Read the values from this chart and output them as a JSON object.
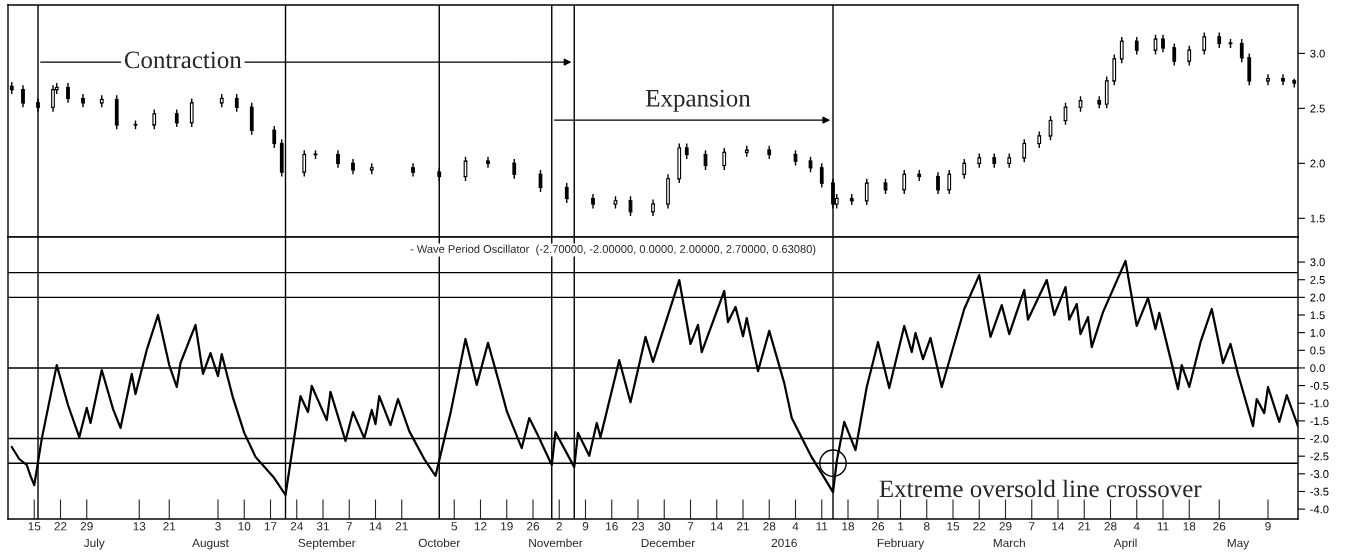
{
  "chart_data": [
    {
      "type": "candlestick",
      "color": "#000000",
      "x": [
        "2015-06-09",
        "2015-06-12",
        "2015-06-16",
        "2015-06-20",
        "2015-06-21",
        "2015-06-24",
        "2015-06-28",
        "2015-07-03",
        "2015-07-07",
        "2015-07-12",
        "2015-07-17",
        "2015-07-23",
        "2015-07-27",
        "2015-08-04",
        "2015-08-08",
        "2015-08-12",
        "2015-08-18",
        "2015-08-20",
        "2015-08-26",
        "2015-08-29",
        "2015-09-04",
        "2015-09-08",
        "2015-09-13",
        "2015-09-24",
        "2015-10-01",
        "2015-10-08",
        "2015-10-14",
        "2015-10-21",
        "2015-10-28",
        "2015-11-04",
        "2015-11-11",
        "2015-11-17",
        "2015-11-21",
        "2015-11-27",
        "2015-12-01",
        "2015-12-04",
        "2015-12-06",
        "2015-12-11",
        "2015-12-16",
        "2015-12-22",
        "2015-12-28",
        "2016-01-04",
        "2016-01-08",
        "2016-01-11",
        "2016-01-14",
        "2016-01-15",
        "2016-01-19",
        "2016-01-23",
        "2016-01-28",
        "2016-02-02",
        "2016-02-06",
        "2016-02-11",
        "2016-02-14",
        "2016-02-18",
        "2016-02-22",
        "2016-02-26",
        "2016-03-01",
        "2016-03-05",
        "2016-03-09",
        "2016-03-12",
        "2016-03-16",
        "2016-03-20",
        "2016-03-25",
        "2016-03-27",
        "2016-03-29",
        "2016-03-31",
        "2016-04-04",
        "2016-04-09",
        "2016-04-11",
        "2016-04-14",
        "2016-04-18",
        "2016-04-22",
        "2016-04-26",
        "2016-04-29",
        "2016-05-02",
        "2016-05-04",
        "2016-05-09",
        "2016-05-13",
        "2016-05-16"
      ],
      "ohlc": [
        [
          2.7,
          2.74,
          2.63,
          2.67
        ],
        [
          2.67,
          2.71,
          2.51,
          2.55
        ],
        [
          2.55,
          2.59,
          2.47,
          2.51
        ],
        [
          2.51,
          2.71,
          2.47,
          2.67
        ],
        [
          2.67,
          2.73,
          2.63,
          2.69
        ],
        [
          2.69,
          2.73,
          2.55,
          2.59
        ],
        [
          2.59,
          2.63,
          2.51,
          2.55
        ],
        [
          2.55,
          2.62,
          2.51,
          2.58
        ],
        [
          2.58,
          2.62,
          2.31,
          2.35
        ],
        [
          2.35,
          2.39,
          2.31,
          2.35
        ],
        [
          2.35,
          2.49,
          2.31,
          2.45
        ],
        [
          2.45,
          2.49,
          2.33,
          2.37
        ],
        [
          2.37,
          2.59,
          2.33,
          2.55
        ],
        [
          2.55,
          2.63,
          2.51,
          2.59
        ],
        [
          2.59,
          2.63,
          2.47,
          2.51
        ],
        [
          2.51,
          2.55,
          2.26,
          2.3
        ],
        [
          2.3,
          2.34,
          2.14,
          2.18
        ],
        [
          2.18,
          2.22,
          1.88,
          1.92
        ],
        [
          1.92,
          2.12,
          1.88,
          2.08
        ],
        [
          2.08,
          2.12,
          2.04,
          2.08
        ],
        [
          2.08,
          2.12,
          1.96,
          2.0
        ],
        [
          2.0,
          2.04,
          1.9,
          1.94
        ],
        [
          1.94,
          2.0,
          1.9,
          1.96
        ],
        [
          1.96,
          2.0,
          1.88,
          1.92
        ],
        [
          1.92,
          1.96,
          1.84,
          1.88
        ],
        [
          1.88,
          2.06,
          1.84,
          2.02
        ],
        [
          2.02,
          2.06,
          1.96,
          2.0
        ],
        [
          2.0,
          2.04,
          1.86,
          1.9
        ],
        [
          1.9,
          1.94,
          1.74,
          1.78
        ],
        [
          1.78,
          1.82,
          1.64,
          1.68
        ],
        [
          1.68,
          1.72,
          1.59,
          1.63
        ],
        [
          1.63,
          1.7,
          1.59,
          1.66
        ],
        [
          1.66,
          1.7,
          1.52,
          1.56
        ],
        [
          1.56,
          1.67,
          1.52,
          1.63
        ],
        [
          1.63,
          1.9,
          1.59,
          1.86
        ],
        [
          1.86,
          2.18,
          1.82,
          2.14
        ],
        [
          2.14,
          2.18,
          2.04,
          2.08
        ],
        [
          2.08,
          2.12,
          1.94,
          1.98
        ],
        [
          1.98,
          2.14,
          1.94,
          2.1
        ],
        [
          2.1,
          2.16,
          2.06,
          2.12
        ],
        [
          2.12,
          2.16,
          2.04,
          2.08
        ],
        [
          2.08,
          2.12,
          1.98,
          2.02
        ],
        [
          2.02,
          2.06,
          1.92,
          1.96
        ],
        [
          1.96,
          2.0,
          1.78,
          1.82
        ],
        [
          1.82,
          1.86,
          1.59,
          1.63
        ],
        [
          1.63,
          1.72,
          1.59,
          1.68
        ],
        [
          1.68,
          1.72,
          1.62,
          1.66
        ],
        [
          1.66,
          1.86,
          1.62,
          1.82
        ],
        [
          1.82,
          1.86,
          1.72,
          1.76
        ],
        [
          1.76,
          1.94,
          1.72,
          1.9
        ],
        [
          1.9,
          1.94,
          1.84,
          1.88
        ],
        [
          1.88,
          1.92,
          1.72,
          1.76
        ],
        [
          1.76,
          1.94,
          1.72,
          1.9
        ],
        [
          1.9,
          2.04,
          1.86,
          2.0
        ],
        [
          2.0,
          2.09,
          1.96,
          2.05
        ],
        [
          2.05,
          2.09,
          1.96,
          2.0
        ],
        [
          2.0,
          2.09,
          1.96,
          2.05
        ],
        [
          2.05,
          2.22,
          2.01,
          2.18
        ],
        [
          2.18,
          2.29,
          2.14,
          2.25
        ],
        [
          2.25,
          2.43,
          2.21,
          2.39
        ],
        [
          2.39,
          2.55,
          2.35,
          2.51
        ],
        [
          2.51,
          2.61,
          2.47,
          2.57
        ],
        [
          2.57,
          2.61,
          2.5,
          2.54
        ],
        [
          2.54,
          2.79,
          2.5,
          2.75
        ],
        [
          2.75,
          2.99,
          2.71,
          2.95
        ],
        [
          2.95,
          3.15,
          2.91,
          3.11
        ],
        [
          3.11,
          3.15,
          2.99,
          3.03
        ],
        [
          3.03,
          3.17,
          2.99,
          3.13
        ],
        [
          3.13,
          3.17,
          3.01,
          3.05
        ],
        [
          3.05,
          3.09,
          2.89,
          2.93
        ],
        [
          2.93,
          3.07,
          2.89,
          3.03
        ],
        [
          3.03,
          3.19,
          2.99,
          3.15
        ],
        [
          3.15,
          3.19,
          3.05,
          3.09
        ],
        [
          3.09,
          3.13,
          3.05,
          3.09
        ],
        [
          3.09,
          3.13,
          2.92,
          2.96
        ],
        [
          2.96,
          3.0,
          2.71,
          2.75
        ],
        [
          2.75,
          2.81,
          2.71,
          2.77
        ],
        [
          2.77,
          2.81,
          2.71,
          2.75
        ],
        [
          2.75,
          2.77,
          2.69,
          2.73
        ]
      ],
      "xlim": [
        "2015-06-08",
        "2016-05-17"
      ],
      "ylim": [
        1.33,
        3.44
      ],
      "yticks": [
        {
          "value": 1.5,
          "label": "1.5"
        },
        {
          "value": 2.0,
          "label": "2.0"
        },
        {
          "value": 2.5,
          "label": "2.5"
        },
        {
          "value": 3.0,
          "label": "3.0"
        }
      ],
      "tick_labels": "y",
      "ref_lines": [
        {
          "axis": "x",
          "value": "2015-06-16"
        },
        {
          "axis": "x",
          "value": "2015-08-21"
        },
        {
          "axis": "x",
          "value": "2015-10-01"
        },
        {
          "axis": "x",
          "value": "2015-10-31"
        },
        {
          "axis": "x",
          "value": "2015-11-06"
        },
        {
          "axis": "x",
          "value": "2016-01-14"
        }
      ],
      "annotations": [
        "Contraction",
        "Expansion"
      ]
    },
    {
      "type": "line",
      "title": "- Wave Period Oscillator  (-2.70000, -2.00000, 0.0000, 2.00000, 2.70000, 0.63080)",
      "x": [
        "2015-06-09",
        "2015-06-11",
        "2015-06-13",
        "2015-06-14",
        "2015-06-15",
        "2015-06-17",
        "2015-06-21",
        "2015-06-24",
        "2015-06-27",
        "2015-06-29",
        "2015-06-30",
        "2015-07-03",
        "2015-07-06",
        "2015-07-08",
        "2015-07-11",
        "2015-07-12",
        "2015-07-15",
        "2015-07-18",
        "2015-07-21",
        "2015-07-23",
        "2015-07-24",
        "2015-07-28",
        "2015-07-30",
        "2015-08-01",
        "2015-08-03",
        "2015-08-04",
        "2015-08-07",
        "2015-08-10",
        "2015-08-13",
        "2015-08-18",
        "2015-08-21",
        "2015-08-25",
        "2015-08-27",
        "2015-08-28",
        "2015-09-01",
        "2015-09-02",
        "2015-09-06",
        "2015-09-08",
        "2015-09-11",
        "2015-09-13",
        "2015-09-14",
        "2015-09-15",
        "2015-09-18",
        "2015-09-20",
        "2015-09-23",
        "2015-09-27",
        "2015-09-30",
        "2015-10-04",
        "2015-10-08",
        "2015-10-11",
        "2015-10-14",
        "2015-10-17",
        "2015-10-19",
        "2015-10-23",
        "2015-10-25",
        "2015-10-27",
        "2015-10-31",
        "2015-11-01",
        "2015-11-06",
        "2015-11-07",
        "2015-11-10",
        "2015-11-12",
        "2015-11-13",
        "2015-11-18",
        "2015-11-21",
        "2015-11-25",
        "2015-11-27",
        "2015-12-04",
        "2015-12-07",
        "2015-12-09",
        "2015-12-10",
        "2015-12-16",
        "2015-12-17",
        "2015-12-19",
        "2015-12-21",
        "2015-12-22",
        "2015-12-25",
        "2015-12-28",
        "2016-01-01",
        "2016-01-03",
        "2016-01-08",
        "2016-01-14",
        "2016-01-15",
        "2016-01-17",
        "2016-01-20",
        "2016-01-23",
        "2016-01-26",
        "2016-01-29",
        "2016-02-02",
        "2016-02-04",
        "2016-02-05",
        "2016-02-07",
        "2016-02-09",
        "2016-02-12",
        "2016-02-18",
        "2016-02-22",
        "2016-02-25",
        "2016-02-28",
        "2016-03-01",
        "2016-03-05",
        "2016-03-06",
        "2016-03-11",
        "2016-03-13",
        "2016-03-16",
        "2016-03-17",
        "2016-03-19",
        "2016-03-20",
        "2016-03-22",
        "2016-03-23",
        "2016-03-26",
        "2016-04-01",
        "2016-04-04",
        "2016-04-07",
        "2016-04-09",
        "2016-04-10",
        "2016-04-15",
        "2016-04-16",
        "2016-04-18",
        "2016-04-21",
        "2016-04-24",
        "2016-04-27",
        "2016-04-29",
        "2016-05-01",
        "2016-05-05",
        "2016-05-06",
        "2016-05-08",
        "2016-05-09",
        "2016-05-12",
        "2016-05-14",
        "2016-05-17"
      ],
      "series": [
        {
          "color": "#000000",
          "values": [
            -2.24,
            -2.58,
            -2.75,
            -3.06,
            -3.32,
            -2.01,
            0.08,
            -1.05,
            -1.96,
            -1.13,
            -1.56,
            -0.06,
            -1.16,
            -1.7,
            -0.17,
            -0.74,
            0.51,
            1.5,
            0.08,
            -0.54,
            0.14,
            1.22,
            -0.17,
            0.42,
            -0.23,
            0.39,
            -0.85,
            -1.84,
            -2.52,
            -3.12,
            -3.6,
            -0.8,
            -1.25,
            -0.51,
            -1.48,
            -0.68,
            -2.07,
            -1.25,
            -1.99,
            -1.19,
            -1.59,
            -0.8,
            -1.62,
            -0.88,
            -1.79,
            -2.58,
            -3.06,
            -1.28,
            0.82,
            -0.48,
            0.71,
            -0.43,
            -1.22,
            -2.27,
            -1.42,
            -1.84,
            -2.75,
            -1.82,
            -2.81,
            -1.84,
            -2.49,
            -1.56,
            -1.96,
            0.22,
            -0.97,
            0.88,
            0.17,
            2.49,
            0.68,
            1.22,
            0.45,
            2.18,
            1.3,
            1.73,
            0.9,
            1.41,
            -0.09,
            1.05,
            -0.43,
            -1.42,
            -2.47,
            -3.52,
            -2.64,
            -1.53,
            -2.33,
            -0.54,
            0.73,
            -0.57,
            1.19,
            0.45,
            0.99,
            0.25,
            0.85,
            -0.54,
            1.67,
            2.63,
            0.88,
            1.78,
            0.96,
            2.21,
            1.37,
            2.49,
            1.5,
            2.29,
            1.37,
            1.81,
            0.96,
            1.44,
            0.59,
            1.58,
            3.03,
            1.19,
            1.98,
            1.1,
            1.56,
            -0.6,
            0.08,
            -0.54,
            0.73,
            1.67,
            0.14,
            0.68,
            -0.17,
            -1.65,
            -0.88,
            -1.28,
            -0.54,
            -1.53,
            -0.77,
            -1.65
          ]
        }
      ],
      "xlim": [
        "2015-06-08",
        "2016-05-17"
      ],
      "ylim": [
        -4.28,
        3.71
      ],
      "yticks": [
        {
          "value": -4.0,
          "label": "-4.0"
        },
        {
          "value": -3.5,
          "label": "-3.5"
        },
        {
          "value": -3.0,
          "label": "-3.0"
        },
        {
          "value": -2.5,
          "label": "-2.5"
        },
        {
          "value": -2.0,
          "label": "-2.0"
        },
        {
          "value": -1.5,
          "label": "-1.5"
        },
        {
          "value": -1.0,
          "label": "-1.0"
        },
        {
          "value": -0.5,
          "label": "-0.5"
        },
        {
          "value": 0.0,
          "label": "0.0"
        },
        {
          "value": 0.5,
          "label": "0.5"
        },
        {
          "value": 1.0,
          "label": "1.0"
        },
        {
          "value": 1.5,
          "label": "1.5"
        },
        {
          "value": 2.0,
          "label": "2.0"
        },
        {
          "value": 2.5,
          "label": "2.5"
        },
        {
          "value": 3.0,
          "label": "3.0"
        }
      ],
      "xticks": [
        {
          "value": "2015-06-15",
          "label": "15"
        },
        {
          "value": "2015-06-22",
          "label": "22"
        },
        {
          "value": "2015-06-29",
          "label": "29"
        },
        {
          "value": "2015-07-13",
          "label": "13"
        },
        {
          "value": "2015-07-21",
          "label": "21"
        },
        {
          "value": "2015-08-03",
          "label": "3"
        },
        {
          "value": "2015-08-10",
          "label": "10"
        },
        {
          "value": "2015-08-17",
          "label": "17"
        },
        {
          "value": "2015-08-24",
          "label": "24"
        },
        {
          "value": "2015-08-31",
          "label": "31"
        },
        {
          "value": "2015-09-07",
          "label": "7"
        },
        {
          "value": "2015-09-14",
          "label": "14"
        },
        {
          "value": "2015-09-21",
          "label": "21"
        },
        {
          "value": "2015-10-05",
          "label": "5"
        },
        {
          "value": "2015-10-12",
          "label": "12"
        },
        {
          "value": "2015-10-19",
          "label": "19"
        },
        {
          "value": "2015-10-26",
          "label": "26"
        },
        {
          "value": "2015-11-02",
          "label": "2"
        },
        {
          "value": "2015-11-09",
          "label": "9"
        },
        {
          "value": "2015-11-16",
          "label": "16"
        },
        {
          "value": "2015-11-23",
          "label": "23"
        },
        {
          "value": "2015-11-30",
          "label": "30"
        },
        {
          "value": "2015-12-07",
          "label": "7"
        },
        {
          "value": "2015-12-14",
          "label": "14"
        },
        {
          "value": "2015-12-21",
          "label": "21"
        },
        {
          "value": "2015-12-28",
          "label": "28"
        },
        {
          "value": "2016-01-04",
          "label": "4"
        },
        {
          "value": "2016-01-11",
          "label": "11"
        },
        {
          "value": "2016-01-18",
          "label": "18"
        },
        {
          "value": "2016-01-26",
          "label": "26"
        },
        {
          "value": "2016-02-01",
          "label": "1"
        },
        {
          "value": "2016-02-08",
          "label": "8"
        },
        {
          "value": "2016-02-15",
          "label": "15"
        },
        {
          "value": "2016-02-22",
          "label": "22"
        },
        {
          "value": "2016-02-29",
          "label": "29"
        },
        {
          "value": "2016-03-07",
          "label": "7"
        },
        {
          "value": "2016-03-14",
          "label": "14"
        },
        {
          "value": "2016-03-21",
          "label": "21"
        },
        {
          "value": "2016-03-28",
          "label": "28"
        },
        {
          "value": "2016-04-04",
          "label": "4"
        },
        {
          "value": "2016-04-11",
          "label": "11"
        },
        {
          "value": "2016-04-18",
          "label": "18"
        },
        {
          "value": "2016-04-26",
          "label": "26"
        },
        {
          "value": "2016-05-09",
          "label": "9"
        }
      ],
      "x2lim": [
        "2015-06-08",
        "2016-05-17"
      ],
      "x2ticks": [
        {
          "value": "2015-07-01",
          "label": "July"
        },
        {
          "value": "2015-08-01",
          "label": "August"
        },
        {
          "value": "2015-09-01",
          "label": "September"
        },
        {
          "value": "2015-10-01",
          "label": "October"
        },
        {
          "value": "2015-11-01",
          "label": "November"
        },
        {
          "value": "2015-12-01",
          "label": "December"
        },
        {
          "value": "2016-01-01",
          "label": "2016"
        },
        {
          "value": "2016-02-01",
          "label": "February"
        },
        {
          "value": "2016-03-01",
          "label": "March"
        },
        {
          "value": "2016-04-01",
          "label": "April"
        },
        {
          "value": "2016-05-01",
          "label": "May"
        }
      ],
      "ref_lines": [
        {
          "axis": "y",
          "value": -2.7
        },
        {
          "axis": "y",
          "value": -2.0
        },
        {
          "axis": "y",
          "value": 0.0
        },
        {
          "axis": "y",
          "value": 2.0
        },
        {
          "axis": "y",
          "value": 2.7
        },
        {
          "axis": "x",
          "value": "2015-06-16"
        },
        {
          "axis": "x",
          "value": "2015-08-21"
        },
        {
          "axis": "x",
          "value": "2015-10-01"
        },
        {
          "axis": "x",
          "value": "2015-10-31"
        },
        {
          "axis": "x",
          "value": "2015-11-06"
        },
        {
          "axis": "x",
          "value": "2016-01-14"
        }
      ],
      "annotations": [
        {
          "text": "Extreme oversold line crossover",
          "x": "2016-01-14",
          "y": -2.7
        }
      ]
    }
  ]
}
